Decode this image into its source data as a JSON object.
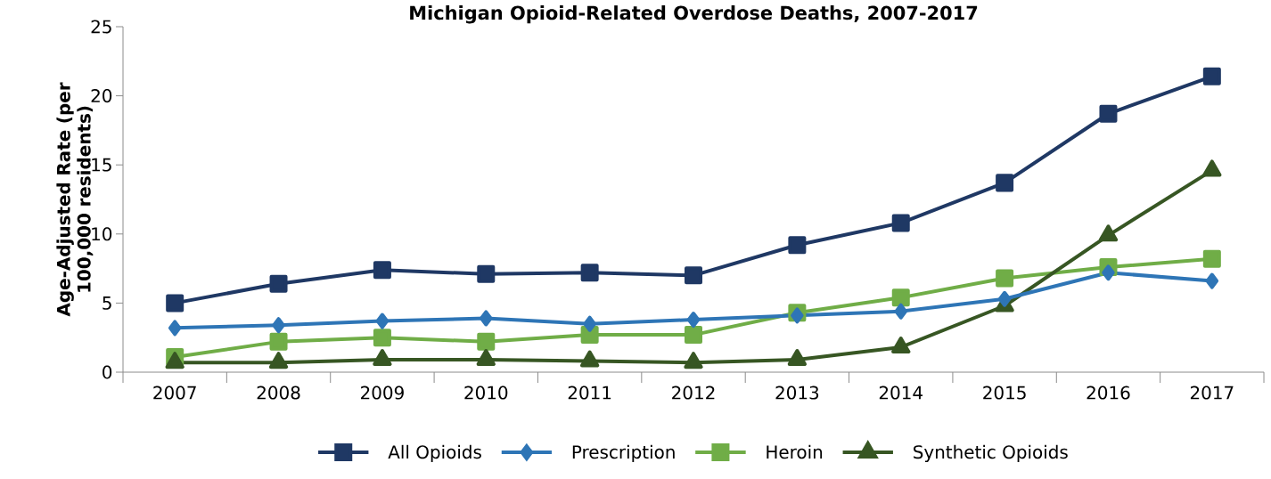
{
  "chart_data": {
    "type": "line",
    "title": "Michigan Opioid-Related Overdose Deaths, 2007-2017",
    "ylabel": "Age-Adjusted Rate (per 100,000 residents)",
    "categories": [
      "2007",
      "2008",
      "2009",
      "2010",
      "2011",
      "2012",
      "2013",
      "2014",
      "2015",
      "2016",
      "2017"
    ],
    "series": [
      {
        "name": "All Opioids",
        "color": "#1f3864",
        "marker": "square",
        "values": [
          5.0,
          6.4,
          7.4,
          7.1,
          7.2,
          7.0,
          9.2,
          10.8,
          13.7,
          18.7,
          21.4
        ]
      },
      {
        "name": "Prescription",
        "color": "#2e75b6",
        "marker": "diamond",
        "values": [
          3.2,
          3.4,
          3.7,
          3.9,
          3.5,
          3.8,
          4.1,
          4.4,
          5.3,
          7.2,
          6.6
        ]
      },
      {
        "name": "Heroin",
        "color": "#70ad47",
        "marker": "square",
        "values": [
          1.1,
          2.2,
          2.5,
          2.2,
          2.7,
          2.7,
          4.3,
          5.4,
          6.8,
          7.6,
          8.2
        ]
      },
      {
        "name": "Synthetic Opioids",
        "color": "#375623",
        "marker": "triangle",
        "values": [
          0.7,
          0.7,
          0.9,
          0.9,
          0.8,
          0.7,
          0.9,
          1.8,
          4.8,
          9.9,
          14.6
        ]
      }
    ],
    "ylim": [
      0,
      25
    ],
    "yticks": [
      0,
      5,
      10,
      15,
      20,
      25
    ],
    "grid": false,
    "legend": "bottom",
    "line_style": "solid"
  }
}
